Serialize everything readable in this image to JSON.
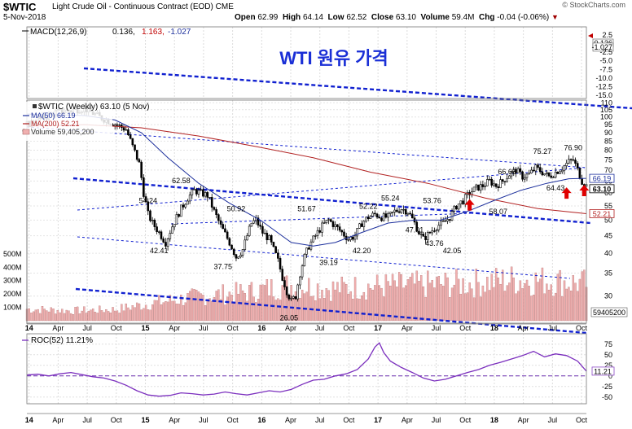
{
  "header": {
    "symbol": "$WTIC",
    "name": "Light Crude Oil - Continuous Contract (EOD)",
    "exchange": "CME",
    "date": "5-Nov-2018",
    "open_label": "Open",
    "open": "62.99",
    "high_label": "High",
    "high": "64.14",
    "low_label": "Low",
    "low": "62.52",
    "close_label": "Close",
    "close": "63.10",
    "volume_label": "Volume",
    "volume": "59.4M",
    "chg_label": "Chg",
    "chg": "-0.04 (-0.06%)",
    "watermark": "© StockCharts.com"
  },
  "overlay_title": "WTI 원유 가격",
  "colors": {
    "price": "#000000",
    "ma50": "#1c2f9c",
    "ma200": "#b22222",
    "trend": "#1020d0",
    "volume": "#f0b0b0",
    "roc": "#7b2fbe",
    "up": "#e00000"
  },
  "chart_data": [
    {
      "type": "line",
      "panel": "macd",
      "title": "MACD(12,26,9) 0.136, 1.163, -1.027",
      "legend": {
        "name": "MACD(12,26,9)",
        "v1": "0.136",
        "v2": "1.163",
        "v3": "-1.027"
      },
      "y_ticks": [
        "2.5",
        "0.136",
        "-1.027",
        "-2.5",
        "-5.0",
        "-7.5",
        "-10.0",
        "-12.5",
        "-15.0"
      ],
      "ylim": [
        -15.0,
        2.5
      ]
    },
    {
      "type": "candlestick",
      "panel": "price",
      "title": "$WTIC (Weekly) 63.10 (5 Nov)",
      "legend": {
        "title": "$WTIC (Weekly) 63.10 (5 Nov)",
        "ma50": "MA(50) 66.19",
        "ma200": "MA(200) 52.21",
        "volume": "Volume 59,405,200"
      },
      "x_ticks": [
        "14",
        "Apr",
        "Jul",
        "Oct",
        "15",
        "Apr",
        "Jul",
        "Oct",
        "16",
        "Apr",
        "Jul",
        "Oct",
        "17",
        "Apr",
        "Jul",
        "Oct",
        "18",
        "Apr",
        "Jul",
        "Oct"
      ],
      "y_ticks": [
        "110",
        "105",
        "100",
        "95",
        "90",
        "85",
        "80",
        "75",
        "70",
        "65",
        "60",
        "55",
        "50",
        "45",
        "40",
        "35",
        "30"
      ],
      "ylim": [
        25,
        112
      ],
      "close_path": [
        {
          "t": 0,
          "v": 95
        },
        {
          "t": 13,
          "v": 103
        },
        {
          "t": 26,
          "v": 106
        },
        {
          "t": 33,
          "v": 100
        },
        {
          "t": 39,
          "v": 96
        },
        {
          "t": 45,
          "v": 92
        },
        {
          "t": 48,
          "v": 82
        },
        {
          "t": 51,
          "v": 73
        },
        {
          "t": 53,
          "v": 60
        },
        {
          "t": 55,
          "v": 52
        },
        {
          "t": 57,
          "v": 49
        },
        {
          "t": 60,
          "v": 46
        },
        {
          "t": 63,
          "v": 43
        },
        {
          "t": 66,
          "v": 48
        },
        {
          "t": 70,
          "v": 54
        },
        {
          "t": 73,
          "v": 58
        },
        {
          "t": 76,
          "v": 61
        },
        {
          "t": 79,
          "v": 60
        },
        {
          "t": 82,
          "v": 59
        },
        {
          "t": 85,
          "v": 53
        },
        {
          "t": 88,
          "v": 48
        },
        {
          "t": 92,
          "v": 43
        },
        {
          "t": 95,
          "v": 39
        },
        {
          "t": 98,
          "v": 41
        },
        {
          "t": 100,
          "v": 45
        },
        {
          "t": 102,
          "v": 49
        },
        {
          "t": 104,
          "v": 50
        },
        {
          "t": 107,
          "v": 46
        },
        {
          "t": 110,
          "v": 44
        },
        {
          "t": 112,
          "v": 41
        },
        {
          "t": 114,
          "v": 38
        },
        {
          "t": 116,
          "v": 34
        },
        {
          "t": 118,
          "v": 31
        },
        {
          "t": 120,
          "v": 29
        },
        {
          "t": 122,
          "v": 30
        },
        {
          "t": 124,
          "v": 35
        },
        {
          "t": 126,
          "v": 39
        },
        {
          "t": 128,
          "v": 42
        },
        {
          "t": 131,
          "v": 45
        },
        {
          "t": 134,
          "v": 48
        },
        {
          "t": 137,
          "v": 50
        },
        {
          "t": 140,
          "v": 48
        },
        {
          "t": 143,
          "v": 46
        },
        {
          "t": 146,
          "v": 44
        },
        {
          "t": 149,
          "v": 45
        },
        {
          "t": 152,
          "v": 49
        },
        {
          "t": 155,
          "v": 51
        },
        {
          "t": 158,
          "v": 52
        },
        {
          "t": 161,
          "v": 51
        },
        {
          "t": 164,
          "v": 51
        },
        {
          "t": 167,
          "v": 53
        },
        {
          "t": 170,
          "v": 54
        },
        {
          "t": 173,
          "v": 53
        },
        {
          "t": 176,
          "v": 49
        },
        {
          "t": 178,
          "v": 46
        },
        {
          "t": 180,
          "v": 44
        },
        {
          "t": 183,
          "v": 46
        },
        {
          "t": 186,
          "v": 48
        },
        {
          "t": 189,
          "v": 49
        },
        {
          "t": 192,
          "v": 51
        },
        {
          "t": 195,
          "v": 55
        },
        {
          "t": 198,
          "v": 57
        },
        {
          "t": 201,
          "v": 60
        },
        {
          "t": 204,
          "v": 62
        },
        {
          "t": 207,
          "v": 63
        },
        {
          "t": 210,
          "v": 65
        },
        {
          "t": 213,
          "v": 63
        },
        {
          "t": 216,
          "v": 65
        },
        {
          "t": 219,
          "v": 68
        },
        {
          "t": 222,
          "v": 70
        },
        {
          "t": 225,
          "v": 67
        },
        {
          "t": 228,
          "v": 68
        },
        {
          "t": 231,
          "v": 71
        },
        {
          "t": 234,
          "v": 69
        },
        {
          "t": 237,
          "v": 67
        },
        {
          "t": 240,
          "v": 69
        },
        {
          "t": 243,
          "v": 71
        },
        {
          "t": 246,
          "v": 74
        },
        {
          "t": 248,
          "v": 75
        },
        {
          "t": 250,
          "v": 70
        },
        {
          "t": 252,
          "v": 65
        },
        {
          "t": 254,
          "v": 63
        }
      ],
      "ma50": [
        {
          "t": 0,
          "v": 102
        },
        {
          "t": 26,
          "v": 101
        },
        {
          "t": 40,
          "v": 98
        },
        {
          "t": 52,
          "v": 90
        },
        {
          "t": 64,
          "v": 76
        },
        {
          "t": 78,
          "v": 64
        },
        {
          "t": 92,
          "v": 56
        },
        {
          "t": 106,
          "v": 50
        },
        {
          "t": 120,
          "v": 43
        },
        {
          "t": 130,
          "v": 42
        },
        {
          "t": 140,
          "v": 43
        },
        {
          "t": 152,
          "v": 46
        },
        {
          "t": 164,
          "v": 49
        },
        {
          "t": 176,
          "v": 50
        },
        {
          "t": 188,
          "v": 50
        },
        {
          "t": 200,
          "v": 53
        },
        {
          "t": 212,
          "v": 57
        },
        {
          "t": 224,
          "v": 61
        },
        {
          "t": 236,
          "v": 64
        },
        {
          "t": 246,
          "v": 66
        },
        {
          "t": 254,
          "v": 66.19
        }
      ],
      "ma200": [
        {
          "t": 0,
          "v": 94
        },
        {
          "t": 26,
          "v": 95
        },
        {
          "t": 52,
          "v": 93
        },
        {
          "t": 78,
          "v": 88
        },
        {
          "t": 104,
          "v": 82
        },
        {
          "t": 130,
          "v": 76
        },
        {
          "t": 156,
          "v": 69
        },
        {
          "t": 182,
          "v": 64
        },
        {
          "t": 208,
          "v": 58
        },
        {
          "t": 232,
          "v": 54
        },
        {
          "t": 254,
          "v": 52.21
        }
      ],
      "annotations": [
        {
          "label": "91.24",
          "t": 2,
          "v": 89
        },
        {
          "label": "42.41",
          "t": 60,
          "v": 40
        },
        {
          "label": "54.24",
          "t": 55,
          "v": 56
        },
        {
          "label": "62.58",
          "t": 70,
          "v": 64
        },
        {
          "label": "37.75",
          "t": 89,
          "v": 36
        },
        {
          "label": "50.92",
          "t": 95,
          "v": 53
        },
        {
          "label": "26.05",
          "t": 119,
          "v": 25.5
        },
        {
          "label": "39.19",
          "t": 137,
          "v": 37
        },
        {
          "label": "51.67",
          "t": 127,
          "v": 53
        },
        {
          "label": "42.20",
          "t": 152,
          "v": 40
        },
        {
          "label": "52.22",
          "t": 155,
          "v": 54
        },
        {
          "label": "55.24",
          "t": 165,
          "v": 57
        },
        {
          "label": "53.76",
          "t": 184,
          "v": 56
        },
        {
          "label": "47.01",
          "t": 176,
          "v": 46
        },
        {
          "label": "43.76",
          "t": 185,
          "v": 42
        },
        {
          "label": "42.05",
          "t": 193,
          "v": 40
        },
        {
          "label": "58.07",
          "t": 214,
          "v": 52
        },
        {
          "label": "66.66",
          "t": 218,
          "v": 68
        },
        {
          "label": "75.27",
          "t": 234,
          "v": 78
        },
        {
          "label": "76.90",
          "t": 248,
          "v": 80
        },
        {
          "label": "64.43",
          "t": 240,
          "v": 61
        }
      ],
      "right_labels": [
        {
          "label": "66.19",
          "v": 66.19,
          "color": "ma50"
        },
        {
          "label": "63.10",
          "v": 63.1,
          "color": "price"
        },
        {
          "label": "52.21",
          "v": 52.21,
          "color": "ma200"
        }
      ],
      "arrows": [
        {
          "t": 201,
          "v": 54.5
        },
        {
          "t": 245,
          "v": 59
        },
        {
          "t": 253,
          "v": 60
        }
      ]
    },
    {
      "type": "bar",
      "panel": "volume",
      "title": "Volume 59,405,200",
      "y_ticks": [
        "500M",
        "400M",
        "300M",
        "200M",
        "100M"
      ],
      "ylim": [
        0,
        560
      ],
      "value_label": "59405200",
      "profile": [
        {
          "t": 0,
          "v": 95
        },
        {
          "t": 20,
          "v": 80
        },
        {
          "t": 40,
          "v": 90
        },
        {
          "t": 60,
          "v": 150
        },
        {
          "t": 80,
          "v": 200
        },
        {
          "t": 100,
          "v": 230
        },
        {
          "t": 120,
          "v": 290
        },
        {
          "t": 140,
          "v": 260
        },
        {
          "t": 160,
          "v": 280
        },
        {
          "t": 180,
          "v": 290
        },
        {
          "t": 200,
          "v": 300
        },
        {
          "t": 220,
          "v": 330
        },
        {
          "t": 240,
          "v": 320
        },
        {
          "t": 254,
          "v": 300
        }
      ]
    },
    {
      "type": "line",
      "panel": "roc",
      "title": "ROC(52) 11.21%",
      "legend": "ROC(52) 11.21%",
      "y_ticks": [
        "75",
        "50",
        "25",
        "0",
        "-25",
        "-50"
      ],
      "ylim": [
        -62,
        88
      ],
      "value_label": "11.21",
      "x_ticks": [
        "14",
        "Apr",
        "Jul",
        "Oct",
        "15",
        "Apr",
        "Jul",
        "Oct",
        "16",
        "Apr",
        "Jul",
        "Oct",
        "17",
        "Apr",
        "Jul",
        "Oct",
        "18",
        "Apr",
        "Jul",
        "Oct"
      ],
      "values": [
        {
          "t": 0,
          "v": 2
        },
        {
          "t": 5,
          "v": 4
        },
        {
          "t": 10,
          "v": 0
        },
        {
          "t": 15,
          "v": 5
        },
        {
          "t": 20,
          "v": 8
        },
        {
          "t": 25,
          "v": 3
        },
        {
          "t": 30,
          "v": -2
        },
        {
          "t": 35,
          "v": -5
        },
        {
          "t": 40,
          "v": -12
        },
        {
          "t": 45,
          "v": -22
        },
        {
          "t": 50,
          "v": -35
        },
        {
          "t": 55,
          "v": -45
        },
        {
          "t": 60,
          "v": -48
        },
        {
          "t": 65,
          "v": -46
        },
        {
          "t": 70,
          "v": -40
        },
        {
          "t": 75,
          "v": -42
        },
        {
          "t": 80,
          "v": -45
        },
        {
          "t": 85,
          "v": -43
        },
        {
          "t": 90,
          "v": -38
        },
        {
          "t": 95,
          "v": -42
        },
        {
          "t": 100,
          "v": -45
        },
        {
          "t": 105,
          "v": -40
        },
        {
          "t": 110,
          "v": -35
        },
        {
          "t": 115,
          "v": -38
        },
        {
          "t": 120,
          "v": -32
        },
        {
          "t": 125,
          "v": -20
        },
        {
          "t": 130,
          "v": -10
        },
        {
          "t": 135,
          "v": -8
        },
        {
          "t": 140,
          "v": 0
        },
        {
          "t": 145,
          "v": 5
        },
        {
          "t": 150,
          "v": 15
        },
        {
          "t": 155,
          "v": 40
        },
        {
          "t": 158,
          "v": 68
        },
        {
          "t": 160,
          "v": 78
        },
        {
          "t": 162,
          "v": 55
        },
        {
          "t": 165,
          "v": 35
        },
        {
          "t": 170,
          "v": 20
        },
        {
          "t": 175,
          "v": 8
        },
        {
          "t": 180,
          "v": -5
        },
        {
          "t": 185,
          "v": -12
        },
        {
          "t": 190,
          "v": -8
        },
        {
          "t": 195,
          "v": 0
        },
        {
          "t": 200,
          "v": 8
        },
        {
          "t": 205,
          "v": 15
        },
        {
          "t": 210,
          "v": 25
        },
        {
          "t": 215,
          "v": 32
        },
        {
          "t": 220,
          "v": 40
        },
        {
          "t": 225,
          "v": 48
        },
        {
          "t": 230,
          "v": 58
        },
        {
          "t": 235,
          "v": 45
        },
        {
          "t": 240,
          "v": 52
        },
        {
          "t": 245,
          "v": 48
        },
        {
          "t": 250,
          "v": 35
        },
        {
          "t": 254,
          "v": 11.21
        }
      ]
    }
  ]
}
